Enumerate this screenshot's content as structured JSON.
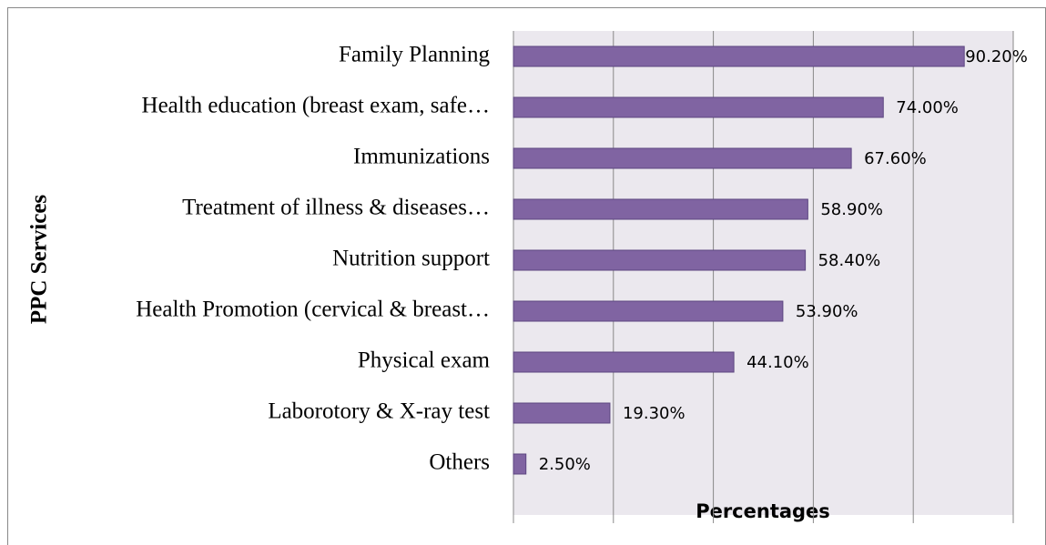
{
  "chart_data": {
    "type": "bar",
    "orientation": "horizontal",
    "x_label": "Percentages",
    "y_label": "PPC Services",
    "categories": [
      "Family Planning",
      "Health education (breast exam, safe…",
      "Immunizations",
      "Treatment of illness & diseases…",
      "Nutrition support",
      "Health Promotion (cervical & breast…",
      "Physical exam",
      "Laborotory & X-ray test",
      "Others"
    ],
    "values": [
      90.2,
      74.0,
      67.6,
      58.9,
      58.4,
      53.9,
      44.1,
      19.3,
      2.5
    ],
    "value_labels": [
      "90.20%",
      "74.00%",
      "67.60%",
      "58.90%",
      "58.40%",
      "53.90%",
      "44.10%",
      "19.30%",
      "2.50%"
    ],
    "color": "#8064a2",
    "xlim": [
      0,
      100
    ],
    "xticks": [
      0,
      20,
      40,
      60,
      80,
      100
    ],
    "grid": true
  }
}
